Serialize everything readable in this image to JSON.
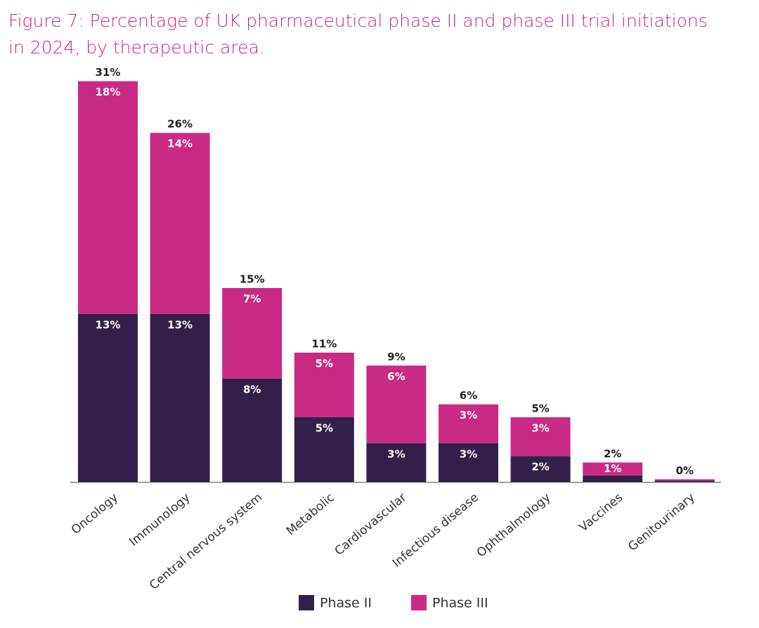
{
  "chart_data": {
    "type": "stacked_bar",
    "title": "Figure 7: Percentage of UK pharmaceutical phase II and phase III trial initiations",
    "subtitle": "in 2024, by therapeutic area.",
    "categories": [
      "Oncology",
      "Immunology",
      "Central nervous system",
      "Metabolic",
      "Cardiovascular",
      "Infectious disease",
      "Ophthalmology",
      "Vaccines",
      "Genitourinary"
    ],
    "series": [
      {
        "name": "Phase II",
        "color": "#33204a",
        "values": [
          13,
          13,
          8,
          5,
          3,
          3,
          2,
          0.5,
          0.1
        ],
        "value_labels": [
          "13%",
          "13%",
          "8%",
          "5%",
          "3%",
          "3%",
          "2%",
          null,
          null
        ]
      },
      {
        "name": "Phase III",
        "color": "#c92a85",
        "values": [
          18,
          14,
          7,
          5,
          6,
          3,
          3,
          1,
          0.1
        ],
        "value_labels": [
          "18%",
          "14%",
          "7%",
          "5%",
          "6%",
          "3%",
          "3%",
          "1%",
          null
        ]
      }
    ],
    "total_labels": [
      "31%",
      "26%",
      "15%",
      "11%",
      "9%",
      "6%",
      "5%",
      "2%",
      "0%"
    ],
    "legend": "bottom"
  }
}
